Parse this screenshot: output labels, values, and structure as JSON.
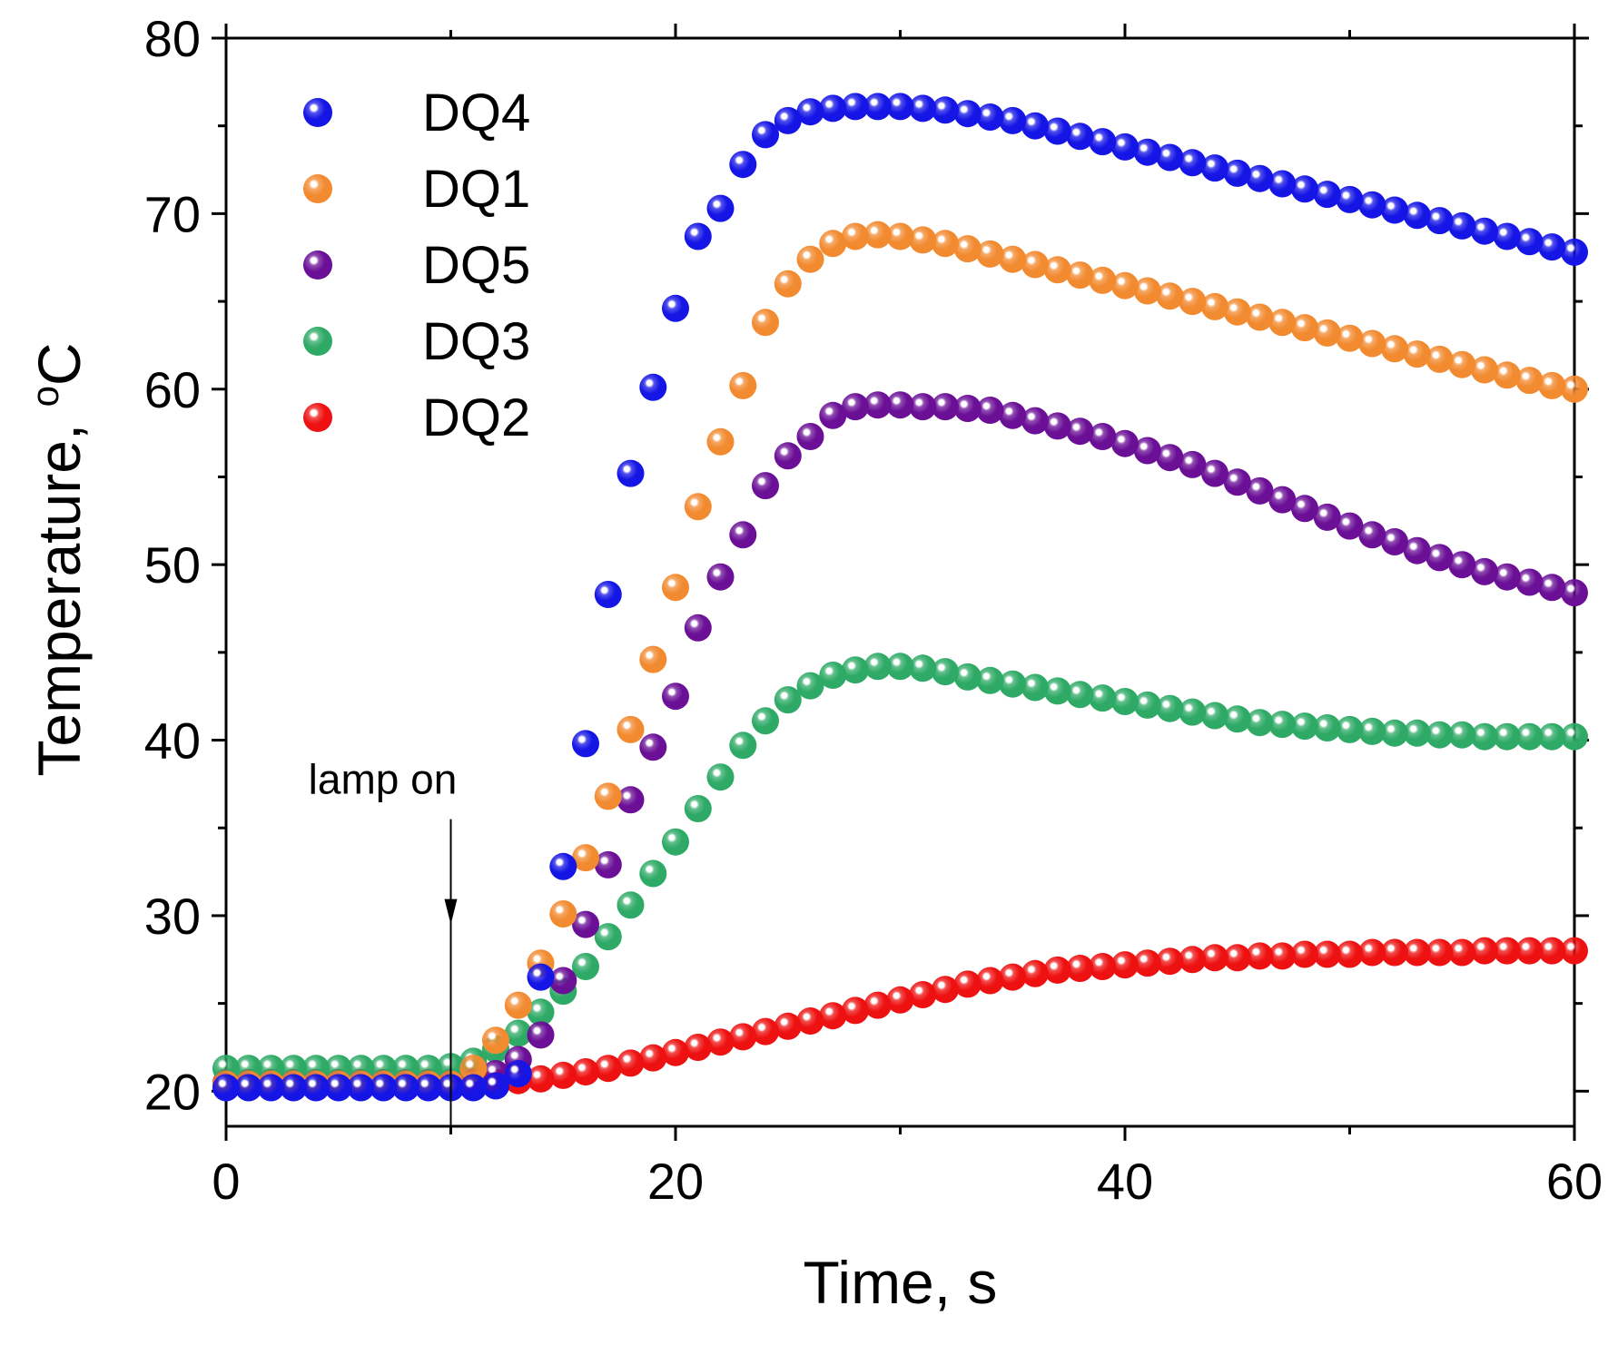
{
  "chart_data": {
    "type": "scatter",
    "xlabel": "Time, s",
    "ylabel_main": "Temperature, ",
    "ylabel_unit": "C",
    "ylabel_degree": "o",
    "xlim": [
      0,
      60
    ],
    "ylim": [
      18,
      80
    ],
    "x_major_ticks": [
      0,
      20,
      40,
      60
    ],
    "x_tick_labels": [
      "0",
      "20",
      "40",
      "60"
    ],
    "x_minor_ticks": [
      10,
      30,
      50
    ],
    "y_major_ticks": [
      20,
      30,
      40,
      50,
      60,
      70,
      80
    ],
    "y_tick_labels": [
      "20",
      "30",
      "40",
      "50",
      "60",
      "70",
      "80"
    ],
    "y_minor_ticks": [
      25,
      35,
      45,
      55,
      65,
      75
    ],
    "grid": false,
    "legend_position": "top-left",
    "annotation": {
      "text": "lamp on",
      "x": 10,
      "arrow_y_from": 35.5,
      "arrow_y_to": 18
    },
    "x": [
      0,
      1,
      2,
      3,
      4,
      5,
      6,
      7,
      8,
      9,
      10,
      11,
      12,
      13,
      14,
      15,
      16,
      17,
      18,
      19,
      20,
      21,
      22,
      23,
      24,
      25,
      26,
      27,
      28,
      29,
      30,
      31,
      32,
      33,
      34,
      35,
      36,
      37,
      38,
      39,
      40,
      41,
      42,
      43,
      44,
      45,
      46,
      47,
      48,
      49,
      50,
      51,
      52,
      53,
      54,
      55,
      56,
      57,
      58,
      59,
      60
    ],
    "series": [
      {
        "name": "DQ4",
        "color": "#1515e6",
        "values": [
          20.2,
          20.2,
          20.2,
          20.2,
          20.2,
          20.2,
          20.2,
          20.2,
          20.2,
          20.2,
          20.2,
          20.2,
          20.3,
          21.0,
          26.5,
          32.8,
          39.8,
          48.3,
          55.2,
          60.1,
          64.6,
          68.7,
          70.3,
          72.8,
          74.5,
          75.3,
          75.8,
          76.0,
          76.1,
          76.1,
          76.1,
          76.0,
          75.9,
          75.7,
          75.5,
          75.3,
          75.0,
          74.7,
          74.4,
          74.1,
          73.8,
          73.5,
          73.2,
          72.9,
          72.6,
          72.3,
          72.0,
          71.7,
          71.4,
          71.1,
          70.8,
          70.5,
          70.2,
          69.9,
          69.6,
          69.3,
          69.0,
          68.7,
          68.4,
          68.1,
          67.8
        ]
      },
      {
        "name": "DQ1",
        "color": "#f28a30",
        "values": [
          20.4,
          20.4,
          20.4,
          20.4,
          20.4,
          20.4,
          20.4,
          20.4,
          20.4,
          20.4,
          20.4,
          21.3,
          22.9,
          24.9,
          27.3,
          30.1,
          33.3,
          36.8,
          40.6,
          44.6,
          48.7,
          53.3,
          57.0,
          60.2,
          63.8,
          66.0,
          67.4,
          68.3,
          68.7,
          68.8,
          68.7,
          68.5,
          68.3,
          68.0,
          67.7,
          67.4,
          67.1,
          66.8,
          66.5,
          66.2,
          65.9,
          65.6,
          65.3,
          65.0,
          64.7,
          64.4,
          64.1,
          63.8,
          63.5,
          63.2,
          62.9,
          62.6,
          62.3,
          62.0,
          61.7,
          61.4,
          61.1,
          60.8,
          60.5,
          60.2,
          60.0
        ]
      },
      {
        "name": "DQ5",
        "color": "#6a0f96",
        "values": [
          20.4,
          20.4,
          20.4,
          20.4,
          20.4,
          20.4,
          20.4,
          20.4,
          20.4,
          20.4,
          20.4,
          20.5,
          21.0,
          21.8,
          23.2,
          26.3,
          29.5,
          32.9,
          36.6,
          39.6,
          42.5,
          46.4,
          49.3,
          51.7,
          54.5,
          56.2,
          57.3,
          58.5,
          59.0,
          59.1,
          59.1,
          59.0,
          59.0,
          58.9,
          58.8,
          58.5,
          58.2,
          57.9,
          57.6,
          57.3,
          56.9,
          56.5,
          56.1,
          55.7,
          55.2,
          54.7,
          54.2,
          53.7,
          53.2,
          52.7,
          52.2,
          51.7,
          51.3,
          50.8,
          50.4,
          50.0,
          49.6,
          49.3,
          49.0,
          48.7,
          48.4
        ]
      },
      {
        "name": "DQ3",
        "color": "#2eaa66",
        "values": [
          21.3,
          21.3,
          21.3,
          21.3,
          21.3,
          21.3,
          21.3,
          21.3,
          21.3,
          21.3,
          21.4,
          21.7,
          22.4,
          23.3,
          24.5,
          25.7,
          27.1,
          28.8,
          30.6,
          32.4,
          34.2,
          36.1,
          37.9,
          39.7,
          41.1,
          42.3,
          43.1,
          43.7,
          44.0,
          44.2,
          44.2,
          44.1,
          43.9,
          43.6,
          43.4,
          43.2,
          43.0,
          42.8,
          42.6,
          42.4,
          42.2,
          42.0,
          41.8,
          41.6,
          41.4,
          41.2,
          41.0,
          40.9,
          40.8,
          40.7,
          40.6,
          40.5,
          40.4,
          40.4,
          40.3,
          40.3,
          40.2,
          40.2,
          40.2,
          40.2,
          40.2
        ]
      },
      {
        "name": "DQ2",
        "color": "#ee1111",
        "values": [
          20.5,
          20.5,
          20.5,
          20.5,
          20.5,
          20.5,
          20.5,
          20.5,
          20.5,
          20.5,
          20.5,
          20.5,
          20.5,
          20.6,
          20.7,
          20.9,
          21.1,
          21.3,
          21.6,
          21.9,
          22.2,
          22.5,
          22.8,
          23.1,
          23.4,
          23.7,
          24.0,
          24.3,
          24.6,
          24.9,
          25.2,
          25.5,
          25.8,
          26.1,
          26.3,
          26.5,
          26.7,
          26.9,
          27.0,
          27.1,
          27.2,
          27.3,
          27.4,
          27.5,
          27.6,
          27.6,
          27.7,
          27.7,
          27.8,
          27.8,
          27.8,
          27.9,
          27.9,
          27.9,
          27.9,
          27.9,
          28.0,
          28.0,
          28.0,
          28.0,
          28.0
        ]
      }
    ]
  }
}
